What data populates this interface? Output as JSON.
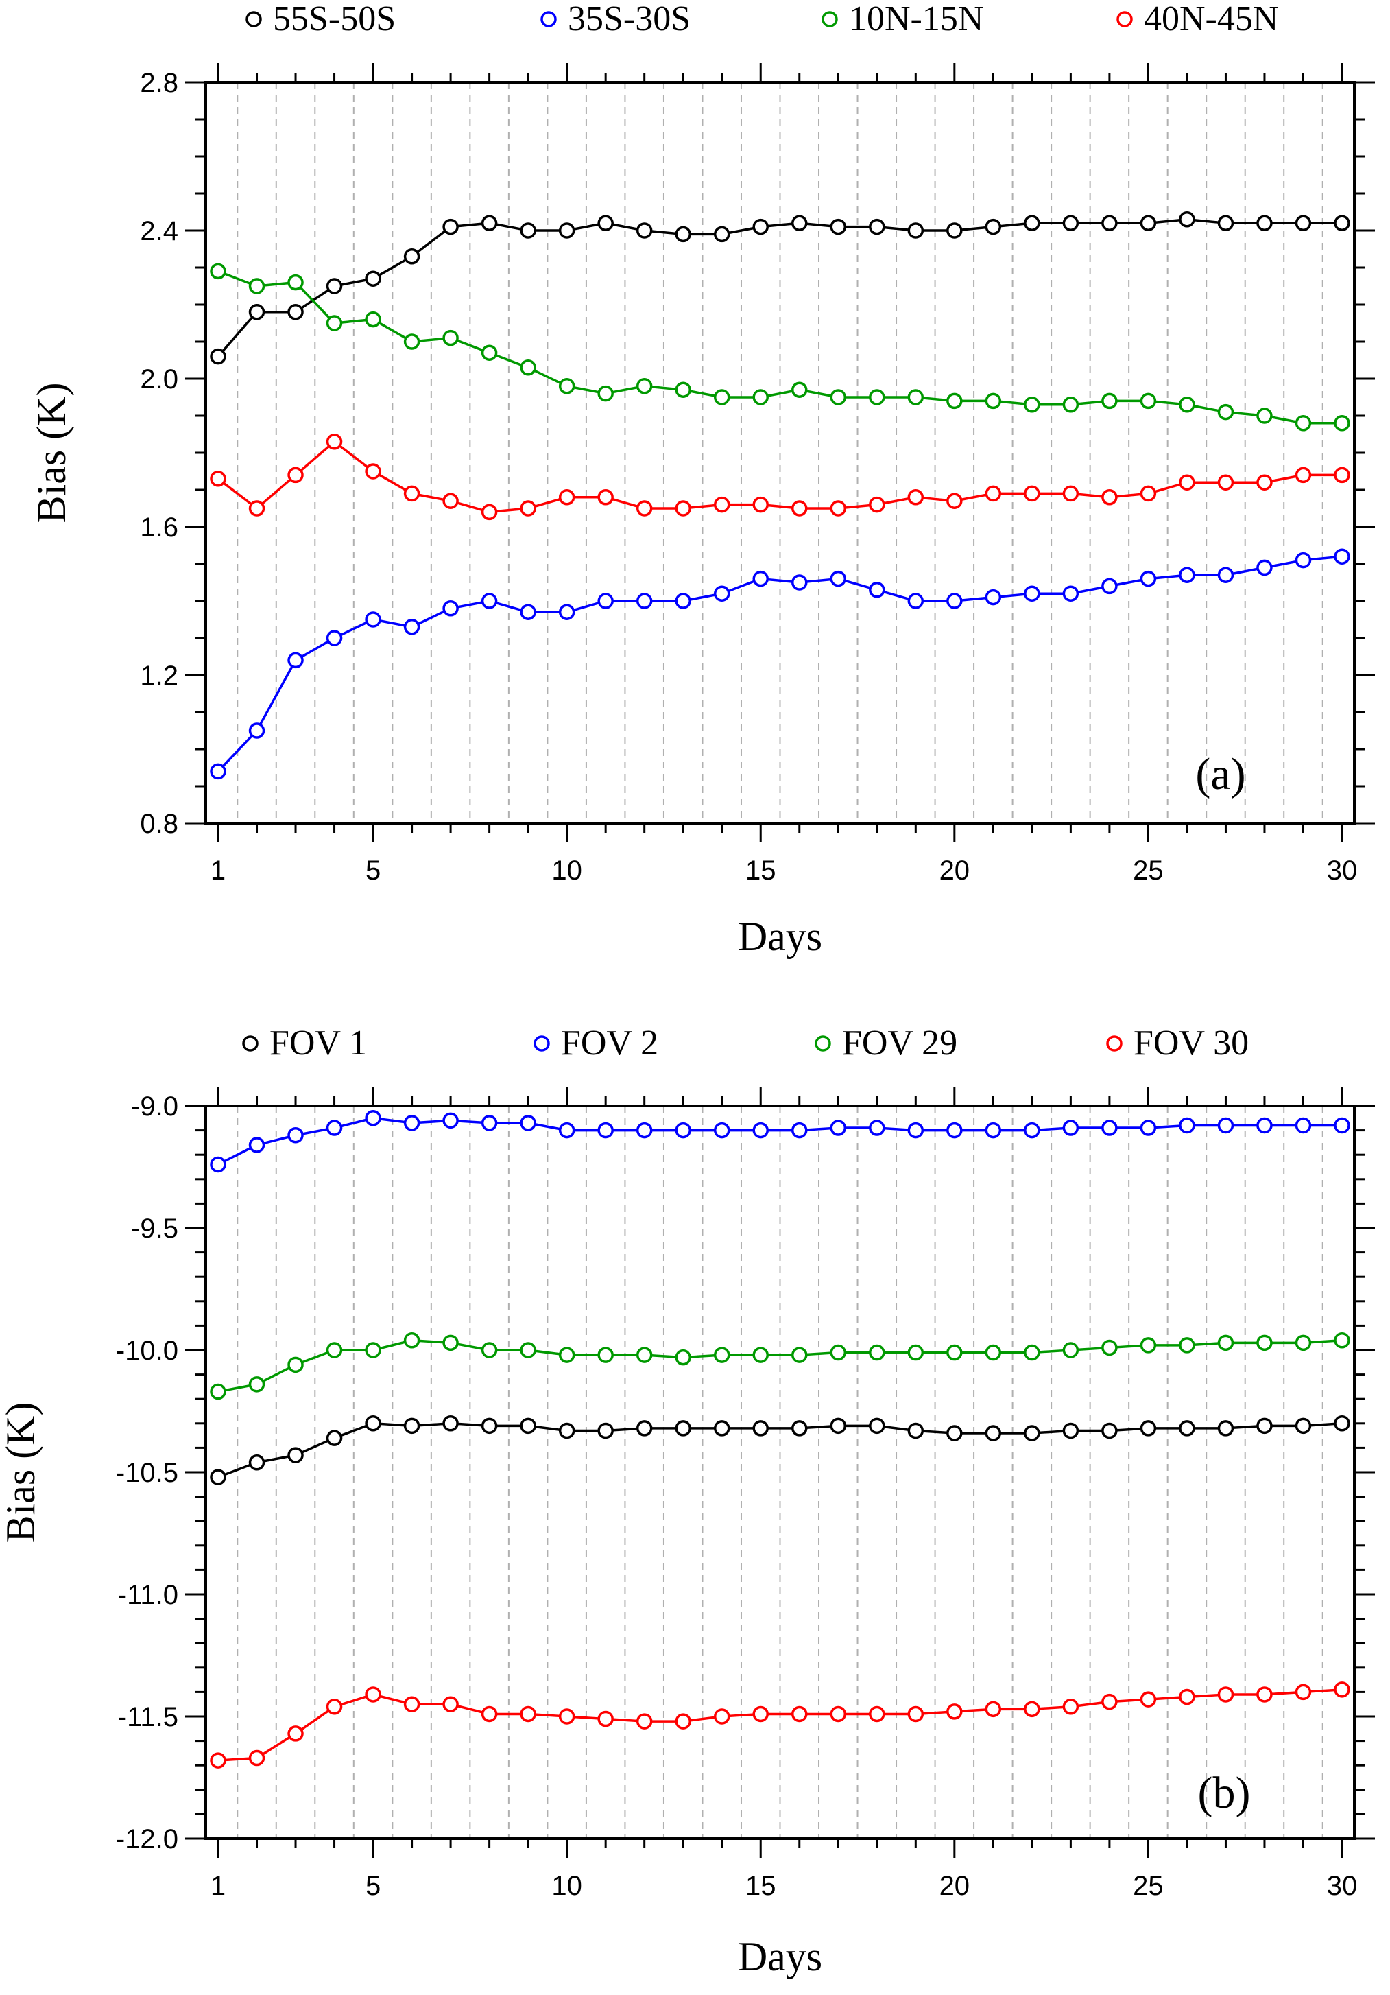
{
  "chart_data": [
    {
      "type": "line",
      "panel_label": "(a)",
      "xlabel": "Days",
      "ylabel": "Bias (K)",
      "xlim": [
        1,
        30
      ],
      "ylim": [
        0.8,
        2.8
      ],
      "xticks": [
        1,
        5,
        10,
        15,
        20,
        25,
        30
      ],
      "yticks": [
        0.8,
        1.2,
        1.6,
        2.0,
        2.4,
        2.8
      ],
      "ytick_labels": [
        "0.8",
        "1.2",
        "1.6",
        "2.0",
        "2.4",
        "2.8"
      ],
      "grid": "vertical dashed lines at each day",
      "legend_position": "top",
      "x": [
        1,
        2,
        3,
        4,
        5,
        6,
        7,
        8,
        9,
        10,
        11,
        12,
        13,
        14,
        15,
        16,
        17,
        18,
        19,
        20,
        21,
        22,
        23,
        24,
        25,
        26,
        27,
        28,
        29,
        30
      ],
      "series": [
        {
          "name": "55S-50S",
          "color": "#000000",
          "values": [
            2.06,
            2.18,
            2.18,
            2.25,
            2.27,
            2.33,
            2.41,
            2.42,
            2.4,
            2.4,
            2.42,
            2.4,
            2.39,
            2.39,
            2.41,
            2.42,
            2.41,
            2.41,
            2.4,
            2.4,
            2.41,
            2.42,
            2.42,
            2.42,
            2.42,
            2.43,
            2.42,
            2.42,
            2.42,
            2.42
          ]
        },
        {
          "name": "35S-30S",
          "color": "#0000ff",
          "values": [
            0.94,
            1.05,
            1.24,
            1.3,
            1.35,
            1.33,
            1.38,
            1.4,
            1.37,
            1.37,
            1.4,
            1.4,
            1.4,
            1.42,
            1.46,
            1.45,
            1.46,
            1.43,
            1.4,
            1.4,
            1.41,
            1.42,
            1.42,
            1.44,
            1.46,
            1.47,
            1.47,
            1.49,
            1.51,
            1.52
          ]
        },
        {
          "name": "10N-15N",
          "color": "#009900",
          "values": [
            2.29,
            2.25,
            2.26,
            2.15,
            2.16,
            2.1,
            2.11,
            2.07,
            2.03,
            1.98,
            1.96,
            1.98,
            1.97,
            1.95,
            1.95,
            1.97,
            1.95,
            1.95,
            1.95,
            1.94,
            1.94,
            1.93,
            1.93,
            1.94,
            1.94,
            1.93,
            1.91,
            1.9,
            1.88,
            1.88
          ]
        },
        {
          "name": "40N-45N",
          "color": "#ff0000",
          "values": [
            1.73,
            1.65,
            1.74,
            1.83,
            1.75,
            1.69,
            1.67,
            1.64,
            1.65,
            1.68,
            1.68,
            1.65,
            1.65,
            1.66,
            1.66,
            1.65,
            1.65,
            1.66,
            1.68,
            1.67,
            1.69,
            1.69,
            1.69,
            1.68,
            1.69,
            1.72,
            1.72,
            1.72,
            1.74,
            1.74
          ]
        }
      ]
    },
    {
      "type": "line",
      "panel_label": "(b)",
      "xlabel": "Days",
      "ylabel": "Bias (K)",
      "xlim": [
        1,
        30
      ],
      "ylim": [
        -12.0,
        -9.0
      ],
      "xticks": [
        1,
        5,
        10,
        15,
        20,
        25,
        30
      ],
      "yticks": [
        -12.0,
        -11.5,
        -11.0,
        -10.5,
        -10.0,
        -9.5,
        -9.0
      ],
      "ytick_labels": [
        "-12.0",
        "-11.5",
        "-11.0",
        "-10.5",
        "-10.0",
        "-9.5",
        "-9.0"
      ],
      "grid": "vertical dashed lines at each day",
      "legend_position": "top",
      "x": [
        1,
        2,
        3,
        4,
        5,
        6,
        7,
        8,
        9,
        10,
        11,
        12,
        13,
        14,
        15,
        16,
        17,
        18,
        19,
        20,
        21,
        22,
        23,
        24,
        25,
        26,
        27,
        28,
        29,
        30
      ],
      "series": [
        {
          "name": "FOV 1",
          "color": "#000000",
          "values": [
            -10.52,
            -10.46,
            -10.43,
            -10.36,
            -10.3,
            -10.31,
            -10.3,
            -10.31,
            -10.31,
            -10.33,
            -10.33,
            -10.32,
            -10.32,
            -10.32,
            -10.32,
            -10.32,
            -10.31,
            -10.31,
            -10.33,
            -10.34,
            -10.34,
            -10.34,
            -10.33,
            -10.33,
            -10.32,
            -10.32,
            -10.32,
            -10.31,
            -10.31,
            -10.3
          ]
        },
        {
          "name": "FOV 2",
          "color": "#0000ff",
          "values": [
            -9.24,
            -9.16,
            -9.12,
            -9.09,
            -9.05,
            -9.07,
            -9.06,
            -9.07,
            -9.07,
            -9.1,
            -9.1,
            -9.1,
            -9.1,
            -9.1,
            -9.1,
            -9.1,
            -9.09,
            -9.09,
            -9.1,
            -9.1,
            -9.1,
            -9.1,
            -9.09,
            -9.09,
            -9.09,
            -9.08,
            -9.08,
            -9.08,
            -9.08,
            -9.08
          ]
        },
        {
          "name": "FOV 29",
          "color": "#009900",
          "values": [
            -10.17,
            -10.14,
            -10.06,
            -10.0,
            -10.0,
            -9.96,
            -9.97,
            -10.0,
            -10.0,
            -10.02,
            -10.02,
            -10.02,
            -10.03,
            -10.02,
            -10.02,
            -10.02,
            -10.01,
            -10.01,
            -10.01,
            -10.01,
            -10.01,
            -10.01,
            -10.0,
            -9.99,
            -9.98,
            -9.98,
            -9.97,
            -9.97,
            -9.97,
            -9.96
          ]
        },
        {
          "name": "FOV 30",
          "color": "#ff0000",
          "values": [
            -11.68,
            -11.67,
            -11.57,
            -11.46,
            -11.41,
            -11.45,
            -11.45,
            -11.49,
            -11.49,
            -11.5,
            -11.51,
            -11.52,
            -11.52,
            -11.5,
            -11.49,
            -11.49,
            -11.49,
            -11.49,
            -11.49,
            -11.48,
            -11.47,
            -11.47,
            -11.46,
            -11.44,
            -11.43,
            -11.42,
            -11.41,
            -11.41,
            -11.4,
            -11.39
          ]
        }
      ]
    }
  ]
}
